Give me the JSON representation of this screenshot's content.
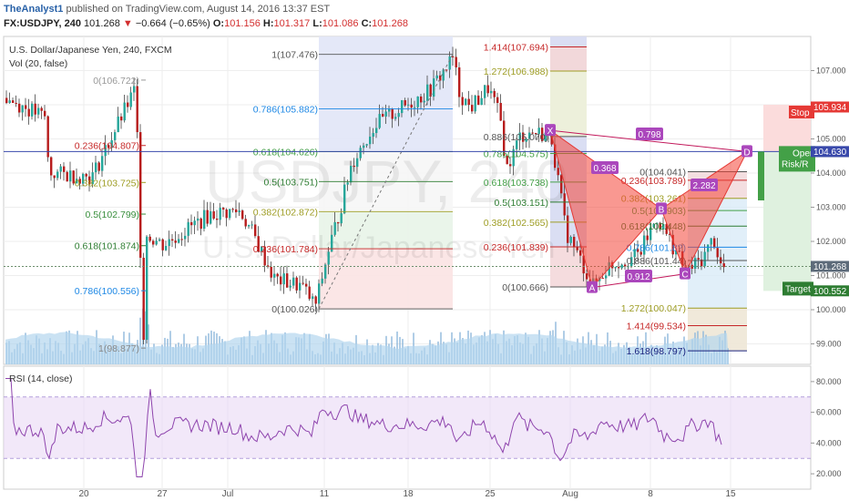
{
  "header": {
    "author": "TheAnalyst1",
    "published_text": "published on TradingView.com, August 14, 2016 13:37 EST",
    "symbol": "FX:USDJPY, 240",
    "last": "101.268",
    "change_arrow": "▼",
    "change": "−0.664 (−0.65%)",
    "open_label": "O:",
    "open": "101.156",
    "high_label": "H:",
    "high": "101.317",
    "low_label": "L:",
    "low": "101.086",
    "close_label": "C:",
    "close": "101.268"
  },
  "chart": {
    "instrument_title": "U.S. Dollar/Japanese Yen, 240, FXCM",
    "volume_label": "Vol (20, false)",
    "watermark_symbol": "USDJPY, 240",
    "watermark_name": "U.S. Dollar/Japanese Yen",
    "rsi_label": "RSI (14, close)"
  },
  "chart_data": {
    "type": "candlestick",
    "price_axis": {
      "ticks": [
        "107.000",
        "106.000",
        "105.000",
        "104.000",
        "103.000",
        "102.000",
        "101.000",
        "100.000",
        "99.000"
      ],
      "ylim": [
        98.4,
        108.0
      ]
    },
    "rsi_axis": {
      "ticks": [
        "80.000",
        "60.000",
        "40.000",
        "20.000"
      ],
      "band": [
        30,
        70
      ]
    },
    "x_ticks": [
      "20",
      "27",
      "Jul",
      "11",
      "18",
      "25",
      "Aug",
      "8",
      "15"
    ],
    "price_tags": [
      {
        "label": "105.934",
        "value": 105.934,
        "color": "#e53935"
      },
      {
        "label": "104.627",
        "value": 104.627,
        "color": "#5d6b7a"
      },
      {
        "label": "104.630",
        "value": 104.63,
        "color": "#3949ab"
      },
      {
        "label": "101.268",
        "value": 101.268,
        "color": "#5d6b7a"
      },
      {
        "label": "100.552",
        "value": 100.552,
        "color": "#2e7d32"
      }
    ],
    "fib_left": [
      {
        "label": "0(106.722)",
        "value": 106.722
      },
      {
        "label": "0.236(104.807)",
        "value": 104.807
      },
      {
        "label": "0.382(103.725)",
        "value": 103.725
      },
      {
        "label": "0.5(102.799)",
        "value": 102.799
      },
      {
        "label": "0.618(101.874)",
        "value": 101.874
      },
      {
        "label": "0.786(100.556)",
        "value": 100.556
      },
      {
        "label": "1(98.877)",
        "value": 98.877
      }
    ],
    "fib_mid": [
      {
        "label": "1(107.476)",
        "value": 107.476
      },
      {
        "label": "0.786(105.882)",
        "value": 105.882
      },
      {
        "label": "0.618(104.626)",
        "value": 104.626
      },
      {
        "label": "0.5(103.751)",
        "value": 103.751
      },
      {
        "label": "0.382(102.872)",
        "value": 102.872
      },
      {
        "label": "0.236(101.784)",
        "value": 101.784
      },
      {
        "label": "0(100.026)",
        "value": 100.026
      }
    ],
    "fib_right": [
      {
        "label": "1.414(107.694)",
        "value": 107.694
      },
      {
        "label": "1.272(106.988)",
        "value": 106.988
      },
      {
        "label": "0.886(105.070)",
        "value": 105.07
      },
      {
        "label": "0.786(104.575)",
        "value": 104.575
      },
      {
        "label": "0.618(103.738)",
        "value": 103.738
      },
      {
        "label": "0.5(103.151)",
        "value": 103.151
      },
      {
        "label": "0.382(102.565)",
        "value": 102.565
      },
      {
        "label": "0.236(101.839)",
        "value": 101.839
      },
      {
        "label": "0(100.666)",
        "value": 100.666
      }
    ],
    "fib_far_right": [
      {
        "label": "0(104.041)",
        "value": 104.041
      },
      {
        "label": "0.236(103.789)",
        "value": 103.789
      },
      {
        "label": "0.382(103.261)",
        "value": 103.261
      },
      {
        "label": "0.5(102.903)",
        "value": 102.903
      },
      {
        "label": "0.618(102.448)",
        "value": 102.448
      },
      {
        "label": "0.786(101.8?)",
        "value": 101.83
      },
      {
        "label": "0.886(101.44)",
        "value": 101.44
      },
      {
        "label": "1.272(100.047)",
        "value": 100.047
      },
      {
        "label": "1.414(99.534)",
        "value": 99.534
      },
      {
        "label": "1.618(98.797)",
        "value": 98.797
      }
    ],
    "pattern_points": [
      {
        "label": "X",
        "value": 105.25
      },
      {
        "label": "A",
        "value": 100.65
      },
      {
        "label": "B",
        "value": 102.95
      },
      {
        "label": "C",
        "value": 101.05
      },
      {
        "label": "D",
        "value": 104.63
      }
    ],
    "pattern_ratios": [
      "0.368",
      "0.798",
      "2.282",
      "0.912"
    ],
    "trade_labels": {
      "stop": "Stop",
      "open": "Open",
      "risk": "Risk/R",
      "target": "Target"
    },
    "colors": {
      "up": "#26a69a",
      "down": "#b71c1c",
      "rsi": "#8e44ad",
      "harmonic": "#f44336",
      "volume": "#8fb8dc"
    }
  }
}
